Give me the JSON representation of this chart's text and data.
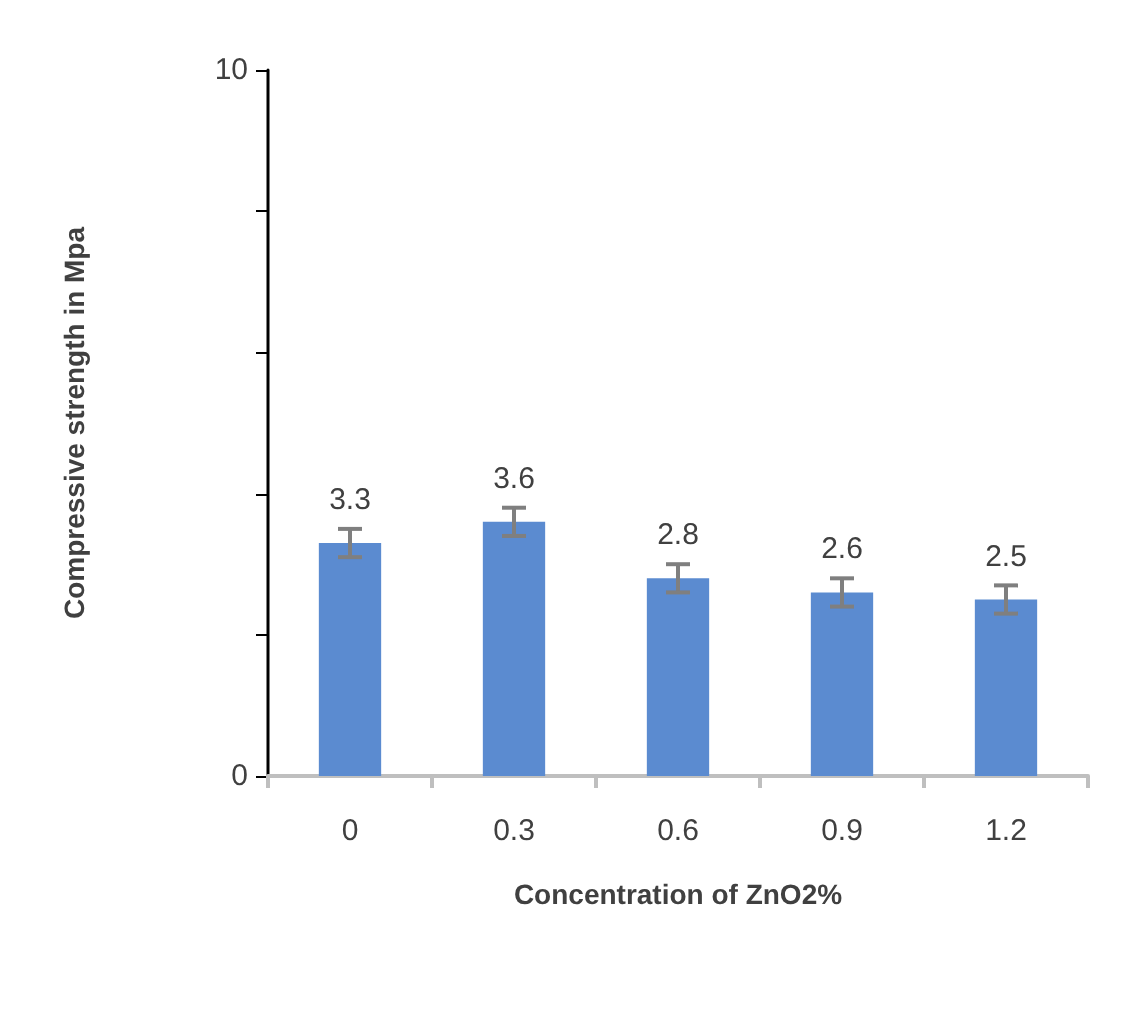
{
  "chart_data": {
    "type": "bar",
    "xlabel": "Concentration of ZnO2%",
    "ylabel": "Compressive strength in Mpa",
    "categories": [
      "0",
      "0.3",
      "0.6",
      "0.9",
      "1.2"
    ],
    "values": [
      3.3,
      3.6,
      2.8,
      2.6,
      2.5
    ],
    "errors": [
      0.2,
      0.2,
      0.2,
      0.2,
      0.2
    ],
    "color": "#5b8bd0",
    "data_labels": true,
    "ylim": [
      0,
      10
    ],
    "yticks": [
      0,
      {
        "value": 2,
        "label": null
      },
      {
        "value": 4,
        "label": null
      },
      {
        "value": 6,
        "label": null
      },
      {
        "value": 8,
        "label": null
      },
      10
    ],
    "grid": false
  }
}
